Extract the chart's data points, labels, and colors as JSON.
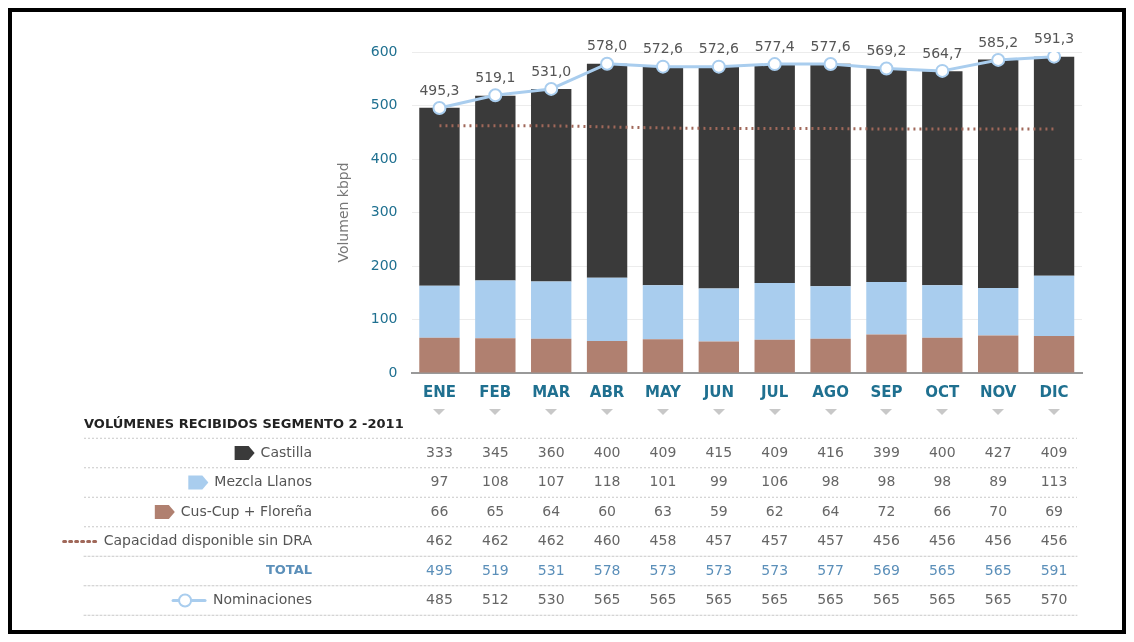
{
  "chart_data": {
    "type": "bar",
    "title": "VOLÚMENES RECIBIDOS SEGMENTO 2 -2011",
    "ylabel": "Volumen kbpd",
    "categories": [
      "ENE",
      "FEB",
      "MAR",
      "ABR",
      "MAY",
      "JUN",
      "JUL",
      "AGO",
      "SEP",
      "OCT",
      "NOV",
      "DIC"
    ],
    "stacked": true,
    "series": [
      {
        "name": "Cus-Cup + Floreña",
        "color": "#b08070",
        "values": [
          66,
          65,
          64,
          60,
          63,
          59,
          62,
          64,
          72,
          66,
          70,
          69
        ]
      },
      {
        "name": "Mezcla Llanos",
        "color": "#a9cdee",
        "values": [
          97,
          108,
          107,
          118,
          101,
          99,
          106,
          98,
          98,
          98,
          89,
          113
        ]
      },
      {
        "name": "Castilla",
        "color": "#3a3a3a",
        "values": [
          333,
          345,
          360,
          400,
          409,
          415,
          409,
          416,
          399,
          400,
          427,
          409
        ]
      },
      {
        "name": "Capacidad disponible sin DRA",
        "type": "line",
        "color": "#a0685a",
        "line_style": "dotted",
        "marker": "none",
        "values": [
          462,
          462,
          462,
          460,
          458,
          457,
          457,
          457,
          456,
          456,
          456,
          456
        ]
      },
      {
        "name": "Nominaciones",
        "type": "line",
        "color": "#a9cdee",
        "marker": "circle",
        "values": [
          495.3,
          519.1,
          531.0,
          578.0,
          572.6,
          572.6,
          577.4,
          577.6,
          569.2,
          564.7,
          585.2,
          591.3
        ],
        "value_labels": [
          "495,3",
          "519,1",
          "531,0",
          "578,0",
          "572,6",
          "572,6",
          "577,4",
          "577,6",
          "569,2",
          "564,7",
          "585,2",
          "591,3"
        ]
      }
    ],
    "ylim": [
      0,
      600
    ],
    "yticks": [
      0,
      100,
      200,
      300,
      400,
      500,
      600
    ],
    "grid": "y",
    "legend": "bottom",
    "data_labels": true,
    "annotations": [
      "TOTAL",
      "495",
      "519",
      "531",
      "578",
      "573",
      "573",
      "573",
      "577",
      "569",
      "565",
      "565",
      "591",
      "485",
      "512",
      "530",
      "565",
      "565",
      "565",
      "565",
      "565",
      "565",
      "565",
      "565",
      "570"
    ]
  }
}
